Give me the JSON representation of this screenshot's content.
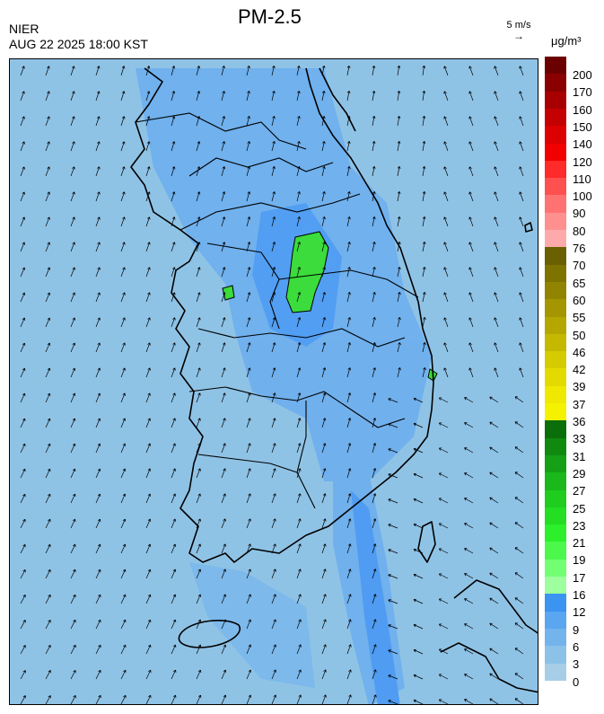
{
  "header": {
    "agency": "NIER",
    "timestamp": "AUG 22 2025 18:00 KST",
    "title": "PM-2.5"
  },
  "wind_reference": {
    "speed_label": "5 m/s",
    "arrow_glyph": "→"
  },
  "legend": {
    "unit": "μg/m³",
    "labels": [
      "200",
      "170",
      "160",
      "150",
      "140",
      "120",
      "110",
      "100",
      "90",
      "80",
      "76",
      "70",
      "65",
      "60",
      "55",
      "50",
      "46",
      "42",
      "39",
      "37",
      "36",
      "33",
      "31",
      "29",
      "27",
      "25",
      "23",
      "21",
      "19",
      "17",
      "16",
      "12",
      "9",
      "6",
      "3",
      "0"
    ],
    "colors": [
      "#6b0000",
      "#8a0000",
      "#a80000",
      "#c40000",
      "#dd0000",
      "#f20000",
      "#ff2a2a",
      "#ff5050",
      "#ff7272",
      "#ff9090",
      "#ffaaaa",
      "#6b6000",
      "#7f7300",
      "#918400",
      "#a39600",
      "#b3a700",
      "#c4b900",
      "#d4cb00",
      "#e3db00",
      "#efe800",
      "#f5f200",
      "#0a6e0a",
      "#0f8a0f",
      "#15a015",
      "#1ab81a",
      "#1ecd1e",
      "#23de23",
      "#2bf02b",
      "#4cf84c",
      "#72ff72",
      "#9dff9d",
      "#3a94f0",
      "#5aa6f0",
      "#74b4ec",
      "#8cc2e8",
      "#a6cee6"
    ]
  },
  "map": {
    "background_color": "#8fc3e6",
    "wind_arrow_color": "#000000",
    "coast_color": "#000000",
    "features": {
      "hotspot_label": "highest concentration area (central inland)",
      "colors": {
        "high": "#3bdc3b",
        "mid": "#5ba7f0",
        "low": "#8fc3e6"
      }
    }
  }
}
